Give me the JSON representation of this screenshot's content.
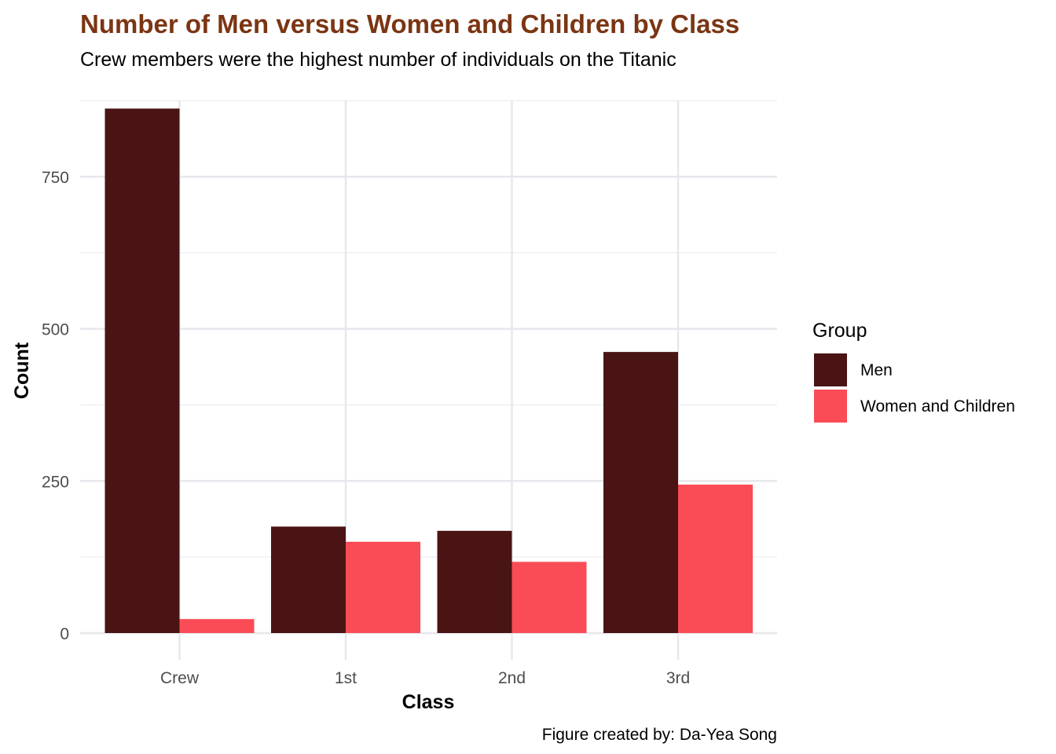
{
  "chart_data": {
    "type": "bar",
    "title": "Number of Men versus Women and Children by Class",
    "subtitle": "Crew members were the highest number of individuals on the Titanic",
    "xlabel": "Class",
    "ylabel": "Count",
    "caption": "Figure created by: Da-Yea Song",
    "categories": [
      "Crew",
      "1st",
      "2nd",
      "3rd"
    ],
    "series": [
      {
        "name": "Men",
        "values": [
          862,
          175,
          168,
          462
        ],
        "color": "#4a1414"
      },
      {
        "name": "Women and Children",
        "values": [
          23,
          150,
          117,
          244
        ],
        "color": "#fa4c56"
      }
    ],
    "yticks": [
      0,
      250,
      500,
      750
    ],
    "ylim": [
      0,
      870
    ],
    "grid": true,
    "legend": {
      "title": "Group",
      "position": "right"
    },
    "title_color": "#7b3513"
  }
}
